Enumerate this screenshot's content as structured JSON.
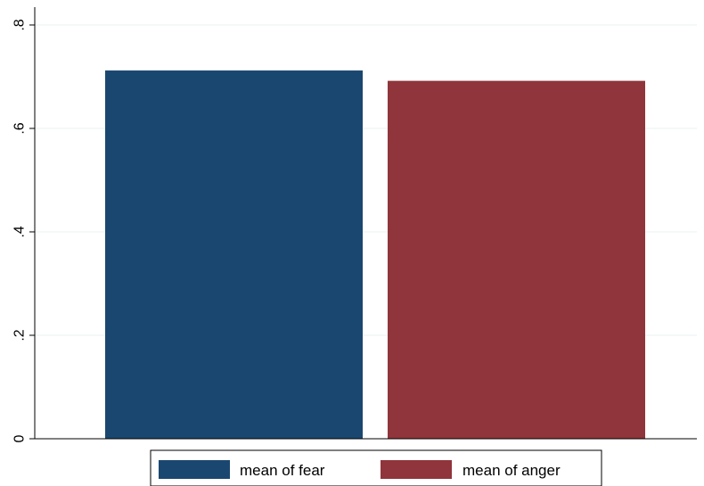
{
  "chart_data": {
    "type": "bar",
    "title": "",
    "xlabel": "",
    "ylabel": "",
    "ylim": [
      0,
      0.8
    ],
    "yticks": [
      {
        "value": 0,
        "label": "0"
      },
      {
        "value": 0.2,
        "label": ".2"
      },
      {
        "value": 0.4,
        "label": ".4"
      },
      {
        "value": 0.6,
        "label": ".6"
      },
      {
        "value": 0.8,
        "label": ".8"
      }
    ],
    "grid": true,
    "legend_position": "bottom",
    "series": [
      {
        "name": "mean of fear",
        "value": 0.712,
        "color": "#1a476f"
      },
      {
        "name": "mean of anger",
        "value": 0.692,
        "color": "#90353b"
      }
    ]
  }
}
